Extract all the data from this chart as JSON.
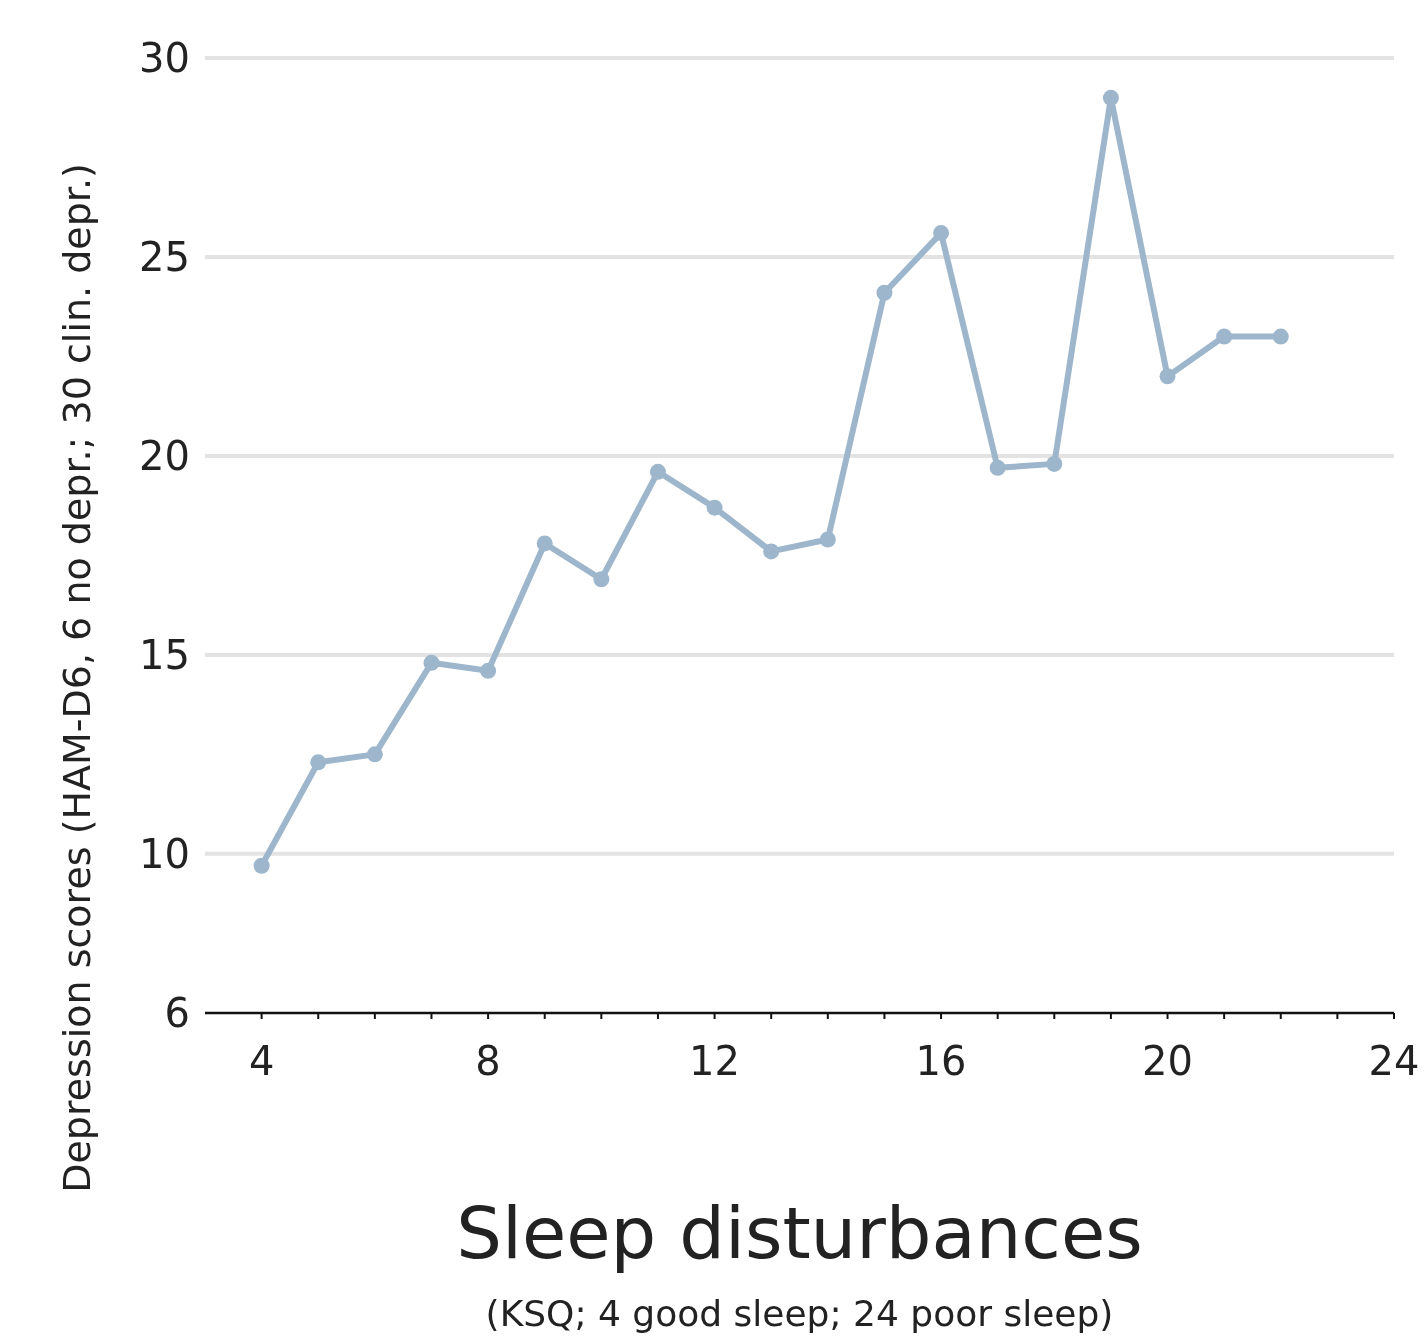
{
  "chart_data": {
    "type": "line",
    "xlabel": "Sleep disturbances",
    "ylabel": "Depression scores (HAM-D6, 6 no depr.; 30 clin. depr.)",
    "annotations": [
      "(KSQ; 4 good sleep; 24 poor sleep)"
    ],
    "x": [
      4,
      5,
      6,
      7,
      8,
      9,
      10,
      11,
      12,
      13,
      14,
      15,
      16,
      17,
      18,
      19,
      20,
      21,
      22
    ],
    "series": [
      {
        "color": "#9db6cc",
        "values": [
          9.7,
          12.3,
          12.5,
          14.8,
          14.6,
          17.8,
          16.9,
          19.6,
          18.7,
          17.6,
          17.9,
          24.1,
          25.6,
          19.7,
          19.8,
          29.0,
          22.0,
          23.0,
          23.0
        ]
      }
    ],
    "xlim": [
      3,
      24
    ],
    "xticks": [
      4,
      {
        "value": 5,
        "label": null
      },
      {
        "value": 6,
        "label": null
      },
      {
        "value": 7,
        "label": null
      },
      8,
      {
        "value": 9,
        "label": null
      },
      {
        "value": 10,
        "label": null
      },
      {
        "value": 11,
        "label": null
      },
      12,
      {
        "value": 13,
        "label": null
      },
      {
        "value": 14,
        "label": null
      },
      {
        "value": 15,
        "label": null
      },
      16,
      {
        "value": 17,
        "label": null
      },
      {
        "value": 18,
        "label": null
      },
      {
        "value": 19,
        "label": null
      },
      20,
      {
        "value": 21,
        "label": null
      },
      {
        "value": 22,
        "label": null
      },
      {
        "value": 23,
        "label": null
      },
      24
    ],
    "ylim": [
      6,
      30
    ],
    "yticks": [
      6,
      10,
      15,
      20,
      25,
      30
    ],
    "grid": "y",
    "marker": "circle",
    "line_style": "solid"
  }
}
